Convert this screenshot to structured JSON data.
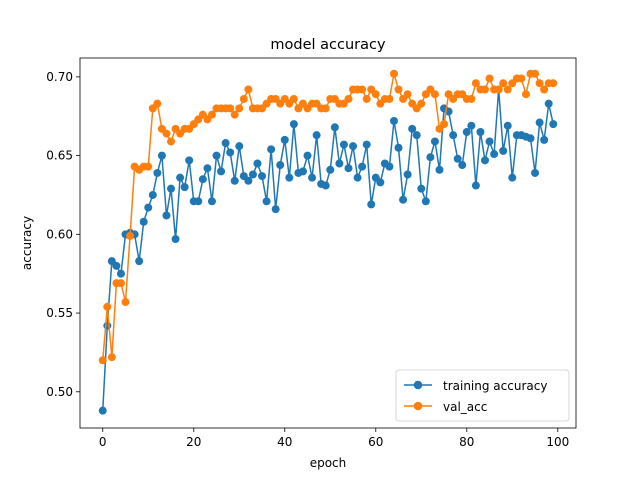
{
  "chart_data": {
    "type": "line",
    "title": "model accuracy",
    "xlabel": "epoch",
    "ylabel": "accuracy",
    "xlim": [
      -5,
      104
    ],
    "ylim": [
      0.477,
      0.712
    ],
    "xticks": [
      0,
      20,
      40,
      60,
      80,
      100
    ],
    "yticks": [
      0.5,
      0.55,
      0.6,
      0.65,
      0.7
    ],
    "ytick_labels": [
      "0.50",
      "0.55",
      "0.60",
      "0.65",
      "0.70"
    ],
    "grid": false,
    "legend_position": "lower-right",
    "x": [
      0,
      1,
      2,
      3,
      4,
      5,
      6,
      7,
      8,
      9,
      10,
      11,
      12,
      13,
      14,
      15,
      16,
      17,
      18,
      19,
      20,
      21,
      22,
      23,
      24,
      25,
      26,
      27,
      28,
      29,
      30,
      31,
      32,
      33,
      34,
      35,
      36,
      37,
      38,
      39,
      40,
      41,
      42,
      43,
      44,
      45,
      46,
      47,
      48,
      49,
      50,
      51,
      52,
      53,
      54,
      55,
      56,
      57,
      58,
      59,
      60,
      61,
      62,
      63,
      64,
      65,
      66,
      67,
      68,
      69,
      70,
      71,
      72,
      73,
      74,
      75,
      76,
      77,
      78,
      79,
      80,
      81,
      82,
      83,
      84,
      85,
      86,
      87,
      88,
      89,
      90,
      91,
      92,
      93,
      94,
      95,
      96,
      97,
      98,
      99
    ],
    "series": [
      {
        "name": "training accuracy",
        "color": "#1f77b4",
        "values": [
          0.488,
          0.542,
          0.583,
          0.58,
          0.575,
          0.6,
          0.601,
          0.6,
          0.583,
          0.608,
          0.617,
          0.625,
          0.639,
          0.65,
          0.612,
          0.629,
          0.597,
          0.636,
          0.63,
          0.647,
          0.621,
          0.621,
          0.635,
          0.642,
          0.621,
          0.65,
          0.64,
          0.658,
          0.652,
          0.634,
          0.656,
          0.637,
          0.634,
          0.638,
          0.645,
          0.637,
          0.621,
          0.654,
          0.616,
          0.644,
          0.66,
          0.636,
          0.67,
          0.639,
          0.64,
          0.65,
          0.636,
          0.663,
          0.632,
          0.631,
          0.641,
          0.668,
          0.645,
          0.657,
          0.642,
          0.656,
          0.636,
          0.643,
          0.657,
          0.619,
          0.636,
          0.633,
          0.645,
          0.643,
          0.672,
          0.655,
          0.622,
          0.638,
          0.667,
          0.663,
          0.629,
          0.621,
          0.649,
          0.659,
          0.641,
          0.68,
          0.678,
          0.663,
          0.648,
          0.644,
          0.665,
          0.669,
          0.631,
          0.665,
          0.647,
          0.659,
          0.651,
          0.692,
          0.653,
          0.669,
          0.636,
          0.663,
          0.663,
          0.662,
          0.661,
          0.639,
          0.671,
          0.66,
          0.683,
          0.67
        ]
      },
      {
        "name": "val_acc",
        "color": "#ff7f0e",
        "values": [
          0.52,
          0.554,
          0.522,
          0.569,
          0.569,
          0.557,
          0.599,
          0.643,
          0.641,
          0.643,
          0.643,
          0.68,
          0.683,
          0.667,
          0.664,
          0.659,
          0.667,
          0.664,
          0.667,
          0.667,
          0.67,
          0.673,
          0.676,
          0.673,
          0.676,
          0.68,
          0.68,
          0.68,
          0.68,
          0.676,
          0.68,
          0.686,
          0.692,
          0.68,
          0.68,
          0.68,
          0.683,
          0.686,
          0.686,
          0.683,
          0.686,
          0.683,
          0.686,
          0.68,
          0.683,
          0.68,
          0.683,
          0.683,
          0.68,
          0.68,
          0.686,
          0.686,
          0.683,
          0.683,
          0.686,
          0.692,
          0.692,
          0.692,
          0.686,
          0.692,
          0.689,
          0.683,
          0.686,
          0.686,
          0.702,
          0.692,
          0.686,
          0.689,
          0.683,
          0.68,
          0.683,
          0.689,
          0.692,
          0.689,
          0.667,
          0.67,
          0.689,
          0.686,
          0.689,
          0.689,
          0.686,
          0.686,
          0.696,
          0.692,
          0.692,
          0.699,
          0.692,
          0.692,
          0.696,
          0.692,
          0.696,
          0.699,
          0.699,
          0.689,
          0.702,
          0.702,
          0.696,
          0.692,
          0.696,
          0.696
        ]
      }
    ]
  }
}
